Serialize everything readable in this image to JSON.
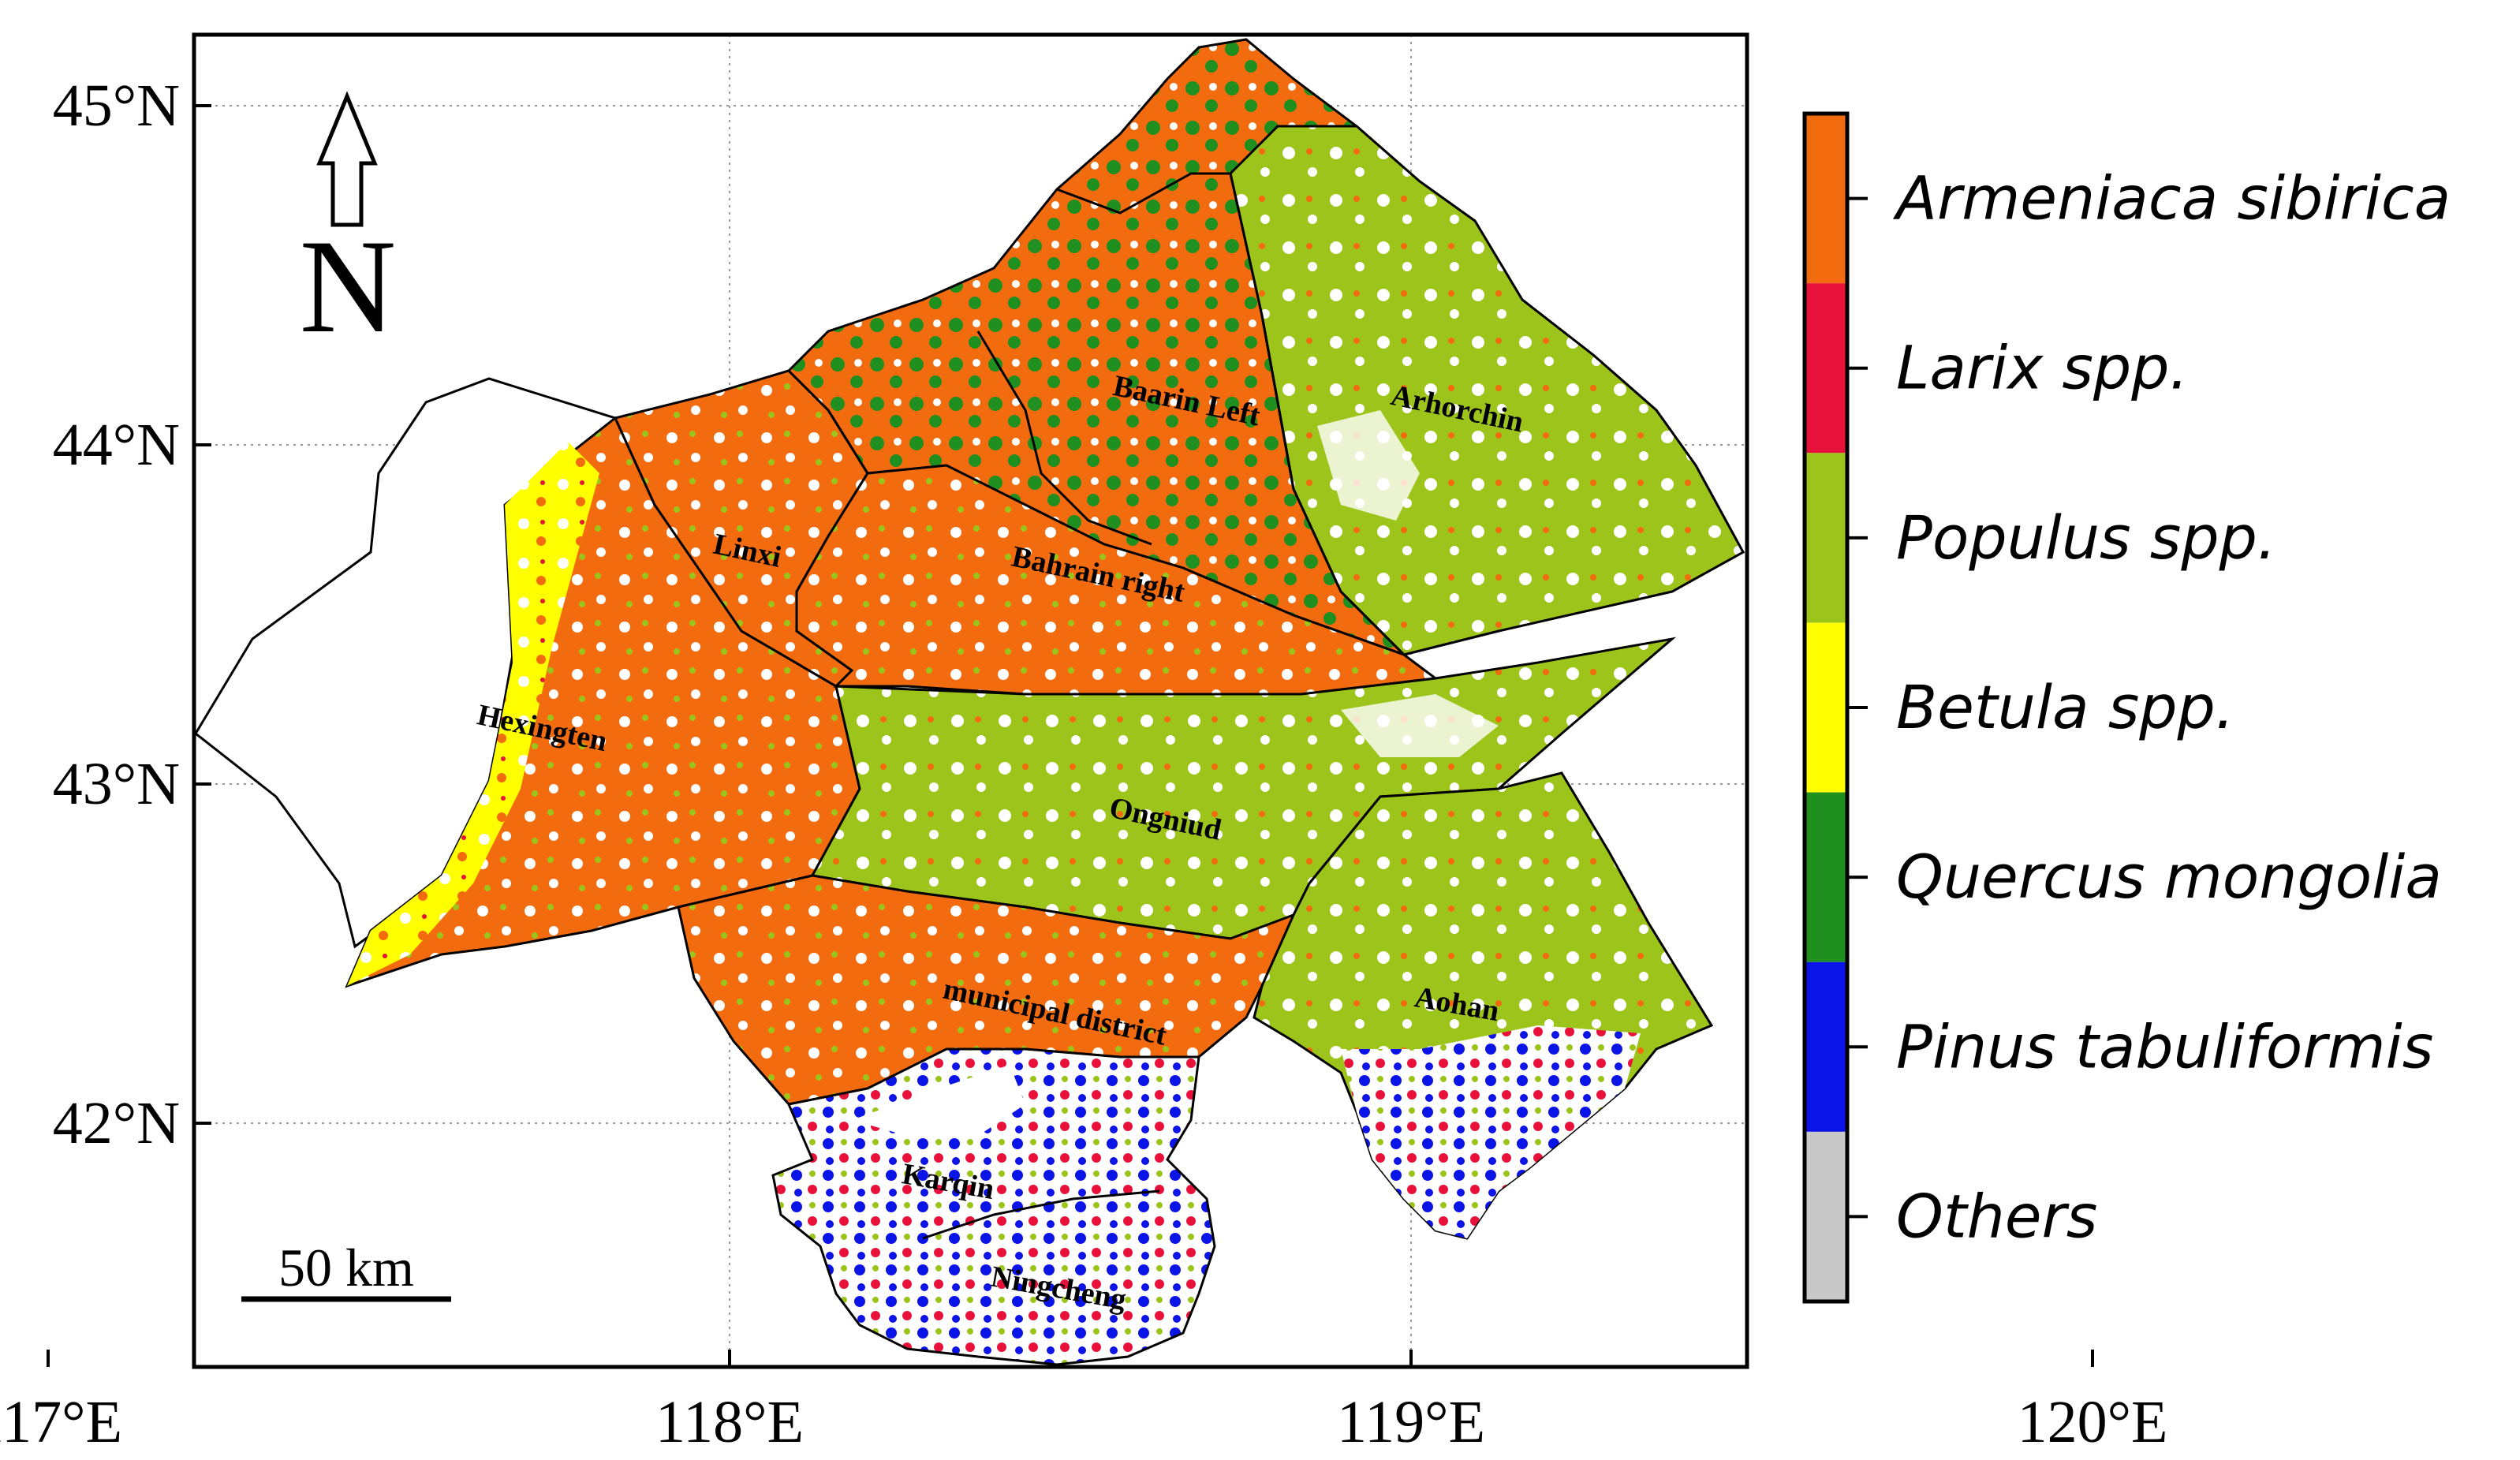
{
  "map": {
    "lat_ticks": [
      {
        "value": 45,
        "label": "45°N"
      },
      {
        "value": 44,
        "label": "44°N"
      },
      {
        "value": 43,
        "label": "43°N"
      },
      {
        "value": 42,
        "label": "42°N"
      }
    ],
    "lon_ticks": [
      {
        "value": 117,
        "label": "117°E"
      },
      {
        "value": 118,
        "label": "118°E"
      },
      {
        "value": 119,
        "label": "119°E"
      },
      {
        "value": 120,
        "label": "120°E"
      }
    ],
    "north_arrow": {
      "label": "N"
    },
    "scale_bar": {
      "label": "50 km"
    },
    "regions": [
      {
        "id": "baarin-left",
        "name": "Baarin Left"
      },
      {
        "id": "arhorchin",
        "name": "Arhorchin"
      },
      {
        "id": "linxi",
        "name": "Linxi"
      },
      {
        "id": "bahrain-right",
        "name": "Bahrain right"
      },
      {
        "id": "hexingten",
        "name": "Hexingten"
      },
      {
        "id": "ongniud",
        "name": "Ongniud"
      },
      {
        "id": "municipal-district",
        "name": "municipal district"
      },
      {
        "id": "aohan",
        "name": "Aohan"
      },
      {
        "id": "karqin",
        "name": "Karqin"
      },
      {
        "id": "ningcheng",
        "name": "Ningcheng"
      }
    ]
  },
  "legend": {
    "items": [
      {
        "label": "Armeniaca sibirica",
        "color": "#f26b0f"
      },
      {
        "label": "Larix spp.",
        "color": "#e8113a"
      },
      {
        "label": "Populus spp.",
        "color": "#9dc41b"
      },
      {
        "label": "Betula spp.",
        "color": "#ffff00"
      },
      {
        "label": "Quercus mongolia",
        "color": "#1f8f1f"
      },
      {
        "label": "Pinus tabuliformis",
        "color": "#0a14e6"
      },
      {
        "label": "Others",
        "color": "#c8c8c8"
      }
    ]
  }
}
